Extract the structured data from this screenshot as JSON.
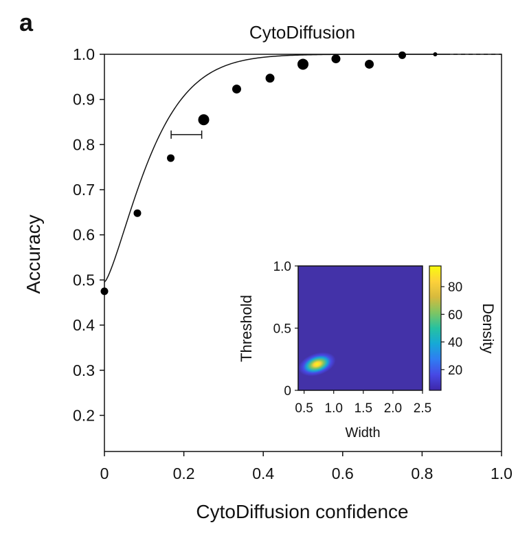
{
  "panel_label": "a",
  "chart_data": [
    {
      "type": "scatter",
      "title": "CytoDiffusion",
      "xlabel": "CytoDiffusion confidence",
      "ylabel": "Accuracy",
      "xlim": [
        0,
        1.0
      ],
      "ylim": [
        0.12,
        1.0
      ],
      "xticks": [
        0,
        0.2,
        0.4,
        0.6,
        0.8,
        1.0
      ],
      "xtick_labels": [
        "0",
        "0.2",
        "0.4",
        "0.6",
        "0.8",
        "1.0"
      ],
      "yticks": [
        0.2,
        0.3,
        0.4,
        0.5,
        0.6,
        0.7,
        0.8,
        0.9,
        1.0
      ],
      "ytick_labels": [
        "0.2",
        "0.3",
        "0.4",
        "0.5",
        "0.6",
        "0.7",
        "0.8",
        "0.9",
        "1.0"
      ],
      "points": [
        {
          "x": 0.0,
          "y": 0.475,
          "size": "small"
        },
        {
          "x": 0.083,
          "y": 0.648,
          "size": "small"
        },
        {
          "x": 0.167,
          "y": 0.77,
          "size": "small"
        },
        {
          "x": 0.25,
          "y": 0.855,
          "size": "large"
        },
        {
          "x": 0.333,
          "y": 0.923,
          "size": "medium"
        },
        {
          "x": 0.417,
          "y": 0.947,
          "size": "medium"
        },
        {
          "x": 0.5,
          "y": 0.978,
          "size": "large"
        },
        {
          "x": 0.583,
          "y": 0.99,
          "size": "medium"
        },
        {
          "x": 0.667,
          "y": 0.978,
          "size": "medium"
        },
        {
          "x": 0.75,
          "y": 0.998,
          "size": "small"
        },
        {
          "x": 0.833,
          "y": 1.0,
          "size": "tiny"
        }
      ],
      "fit_curve": {
        "type": "sigmoid",
        "x_at_0": 0.0,
        "y_at_0": 0.495,
        "asymptote": 1.0
      },
      "error_bar": {
        "y": 0.822,
        "x_low": 0.168,
        "x_high": 0.245
      }
    },
    {
      "type": "heatmap",
      "xlabel": "Width",
      "ylabel": "Threshold",
      "xlim": [
        0.4,
        2.5
      ],
      "ylim": [
        0,
        1.0
      ],
      "xticks": [
        0.5,
        1.0,
        1.5,
        2.0,
        2.5
      ],
      "xtick_labels": [
        "0.5",
        "1.0",
        "1.5",
        "2.0",
        "2.5"
      ],
      "yticks": [
        0,
        0.5,
        1.0
      ],
      "ytick_labels": [
        "0",
        "0.5",
        "1.0"
      ],
      "peak": {
        "x": 0.72,
        "y": 0.21
      },
      "colorbar": {
        "label": "Density",
        "range": [
          5,
          95
        ],
        "ticks": [
          20,
          40,
          60,
          80
        ],
        "tick_labels": [
          "20",
          "40",
          "60",
          "80"
        ]
      }
    }
  ],
  "colors": {
    "axis": "#111111",
    "marker": "#000000",
    "heatmap_background": "#4332a8",
    "colormap": [
      "#3e26a8",
      "#4749e4",
      "#2f7df2",
      "#16a9d6",
      "#26c1a1",
      "#7fc562",
      "#d7ba3d",
      "#fdd13a",
      "#f9fb0e"
    ]
  }
}
